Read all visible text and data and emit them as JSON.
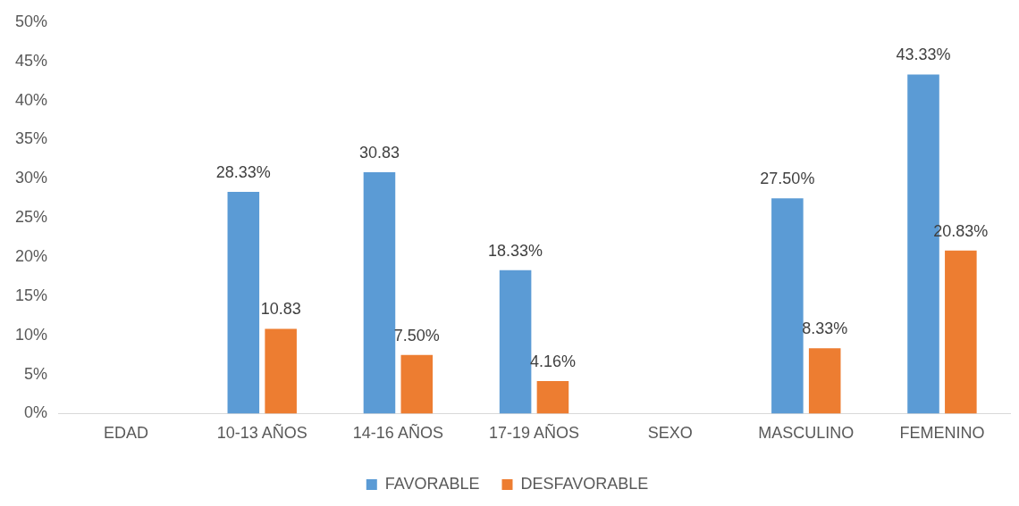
{
  "chart_data": {
    "type": "bar",
    "categories": [
      "EDAD",
      "10-13 AÑOS",
      "14-16 AÑOS",
      "17-19 AÑOS",
      "SEXO",
      "MASCULINO",
      "FEMENINO"
    ],
    "series": [
      {
        "name": "FAVORABLE",
        "color": "#5b9bd5",
        "values": [
          null,
          28.33,
          30.83,
          18.33,
          null,
          27.5,
          43.33
        ],
        "value_labels": [
          null,
          "28.33%",
          "30.83",
          "18.33%",
          null,
          "27.50%",
          "43.33%"
        ]
      },
      {
        "name": "DESFAVORABLE",
        "color": "#ed7d31",
        "values": [
          null,
          10.83,
          7.5,
          4.16,
          null,
          8.33,
          20.83
        ],
        "value_labels": [
          null,
          "10.83",
          "7.50%",
          "4.16%",
          null,
          "8.33%",
          "20.83%"
        ]
      }
    ],
    "ylim": [
      0,
      50
    ],
    "yticks": [
      {
        "value": 0,
        "label": "0%"
      },
      {
        "value": 5,
        "label": "5%"
      },
      {
        "value": 10,
        "label": "10%"
      },
      {
        "value": 15,
        "label": "15%"
      },
      {
        "value": 20,
        "label": "20%"
      },
      {
        "value": 25,
        "label": "25%"
      },
      {
        "value": 30,
        "label": "30%"
      },
      {
        "value": 35,
        "label": "35%"
      },
      {
        "value": 40,
        "label": "40%"
      },
      {
        "value": 45,
        "label": "45%"
      },
      {
        "value": 50,
        "label": "50%"
      }
    ],
    "grid": false,
    "legend": "bottom"
  }
}
